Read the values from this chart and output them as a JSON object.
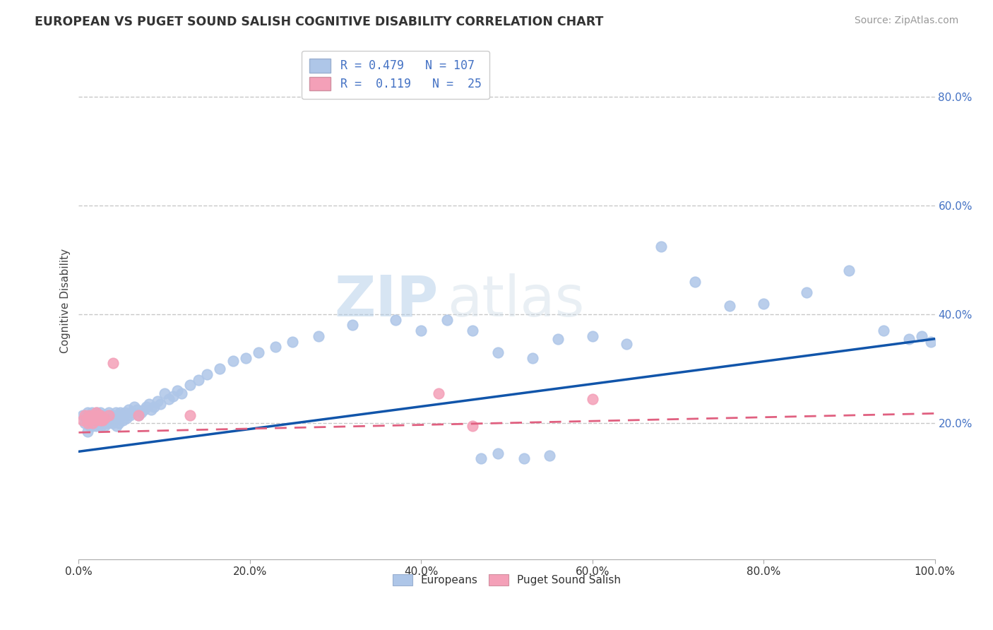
{
  "title": "EUROPEAN VS PUGET SOUND SALISH COGNITIVE DISABILITY CORRELATION CHART",
  "source": "Source: ZipAtlas.com",
  "ylabel": "Cognitive Disability",
  "xlim": [
    0.0,
    1.0
  ],
  "ylim": [
    -0.05,
    0.9
  ],
  "xtick_vals": [
    0.0,
    0.2,
    0.4,
    0.6,
    0.8,
    1.0
  ],
  "xtick_labels": [
    "0.0%",
    "20.0%",
    "40.0%",
    "60.0%",
    "80.0%",
    "100.0%"
  ],
  "ytick_vals": [
    0.2,
    0.4,
    0.6,
    0.8
  ],
  "ytick_labels": [
    "20.0%",
    "40.0%",
    "60.0%",
    "80.0%"
  ],
  "europeans_color": "#aec6e8",
  "salish_color": "#f4a0b8",
  "line_blue": "#1155aa",
  "line_pink": "#e06080",
  "legend_blue_color": "#aec6e8",
  "legend_pink_color": "#f4a0b8",
  "legend_text_color": "#4472c4",
  "R_european": 0.479,
  "N_european": 107,
  "R_salish": 0.119,
  "N_salish": 25,
  "watermark_zip": "ZIP",
  "watermark_atlas": "atlas",
  "background_color": "#ffffff",
  "grid_color": "#c8c8c8",
  "blue_line_y0": 0.148,
  "blue_line_y1": 0.355,
  "pink_line_y0": 0.183,
  "pink_line_y1": 0.218,
  "eu_x": [
    0.005,
    0.007,
    0.008,
    0.01,
    0.01,
    0.012,
    0.013,
    0.014,
    0.015,
    0.015,
    0.016,
    0.016,
    0.017,
    0.018,
    0.018,
    0.019,
    0.02,
    0.02,
    0.021,
    0.022,
    0.022,
    0.023,
    0.024,
    0.025,
    0.025,
    0.026,
    0.027,
    0.028,
    0.028,
    0.029,
    0.03,
    0.03,
    0.031,
    0.032,
    0.033,
    0.034,
    0.035,
    0.036,
    0.037,
    0.038,
    0.039,
    0.04,
    0.041,
    0.042,
    0.043,
    0.044,
    0.045,
    0.046,
    0.047,
    0.048,
    0.05,
    0.052,
    0.054,
    0.056,
    0.058,
    0.06,
    0.062,
    0.065,
    0.068,
    0.07,
    0.073,
    0.076,
    0.079,
    0.082,
    0.085,
    0.088,
    0.092,
    0.095,
    0.1,
    0.105,
    0.11,
    0.115,
    0.12,
    0.13,
    0.14,
    0.15,
    0.165,
    0.18,
    0.195,
    0.21,
    0.23,
    0.25,
    0.28,
    0.32,
    0.37,
    0.4,
    0.43,
    0.46,
    0.49,
    0.53,
    0.56,
    0.6,
    0.64,
    0.68,
    0.72,
    0.76,
    0.8,
    0.85,
    0.9,
    0.94,
    0.97,
    0.985,
    0.995,
    0.47,
    0.49,
    0.52,
    0.55
  ],
  "eu_y": [
    0.215,
    0.2,
    0.21,
    0.22,
    0.185,
    0.205,
    0.195,
    0.21,
    0.22,
    0.2,
    0.215,
    0.195,
    0.205,
    0.2,
    0.215,
    0.205,
    0.21,
    0.195,
    0.22,
    0.205,
    0.215,
    0.2,
    0.21,
    0.205,
    0.22,
    0.195,
    0.21,
    0.215,
    0.2,
    0.205,
    0.215,
    0.195,
    0.21,
    0.205,
    0.215,
    0.2,
    0.22,
    0.205,
    0.21,
    0.215,
    0.2,
    0.215,
    0.21,
    0.205,
    0.22,
    0.195,
    0.21,
    0.215,
    0.2,
    0.22,
    0.215,
    0.205,
    0.22,
    0.21,
    0.225,
    0.215,
    0.22,
    0.23,
    0.225,
    0.215,
    0.22,
    0.225,
    0.23,
    0.235,
    0.225,
    0.23,
    0.24,
    0.235,
    0.255,
    0.245,
    0.25,
    0.26,
    0.255,
    0.27,
    0.28,
    0.29,
    0.3,
    0.315,
    0.32,
    0.33,
    0.34,
    0.35,
    0.36,
    0.38,
    0.39,
    0.37,
    0.39,
    0.37,
    0.33,
    0.32,
    0.355,
    0.36,
    0.345,
    0.525,
    0.46,
    0.415,
    0.42,
    0.44,
    0.48,
    0.37,
    0.355,
    0.36,
    0.35,
    0.135,
    0.145,
    0.135,
    0.14
  ],
  "sa_x": [
    0.005,
    0.007,
    0.01,
    0.011,
    0.012,
    0.013,
    0.015,
    0.016,
    0.017,
    0.018,
    0.02,
    0.02,
    0.022,
    0.023,
    0.025,
    0.025,
    0.028,
    0.03,
    0.035,
    0.04,
    0.07,
    0.13,
    0.42,
    0.46,
    0.6
  ],
  "sa_y": [
    0.205,
    0.215,
    0.2,
    0.21,
    0.215,
    0.205,
    0.21,
    0.2,
    0.215,
    0.21,
    0.205,
    0.22,
    0.21,
    0.215,
    0.205,
    0.215,
    0.205,
    0.21,
    0.215,
    0.31,
    0.215,
    0.215,
    0.255,
    0.195,
    0.245
  ]
}
